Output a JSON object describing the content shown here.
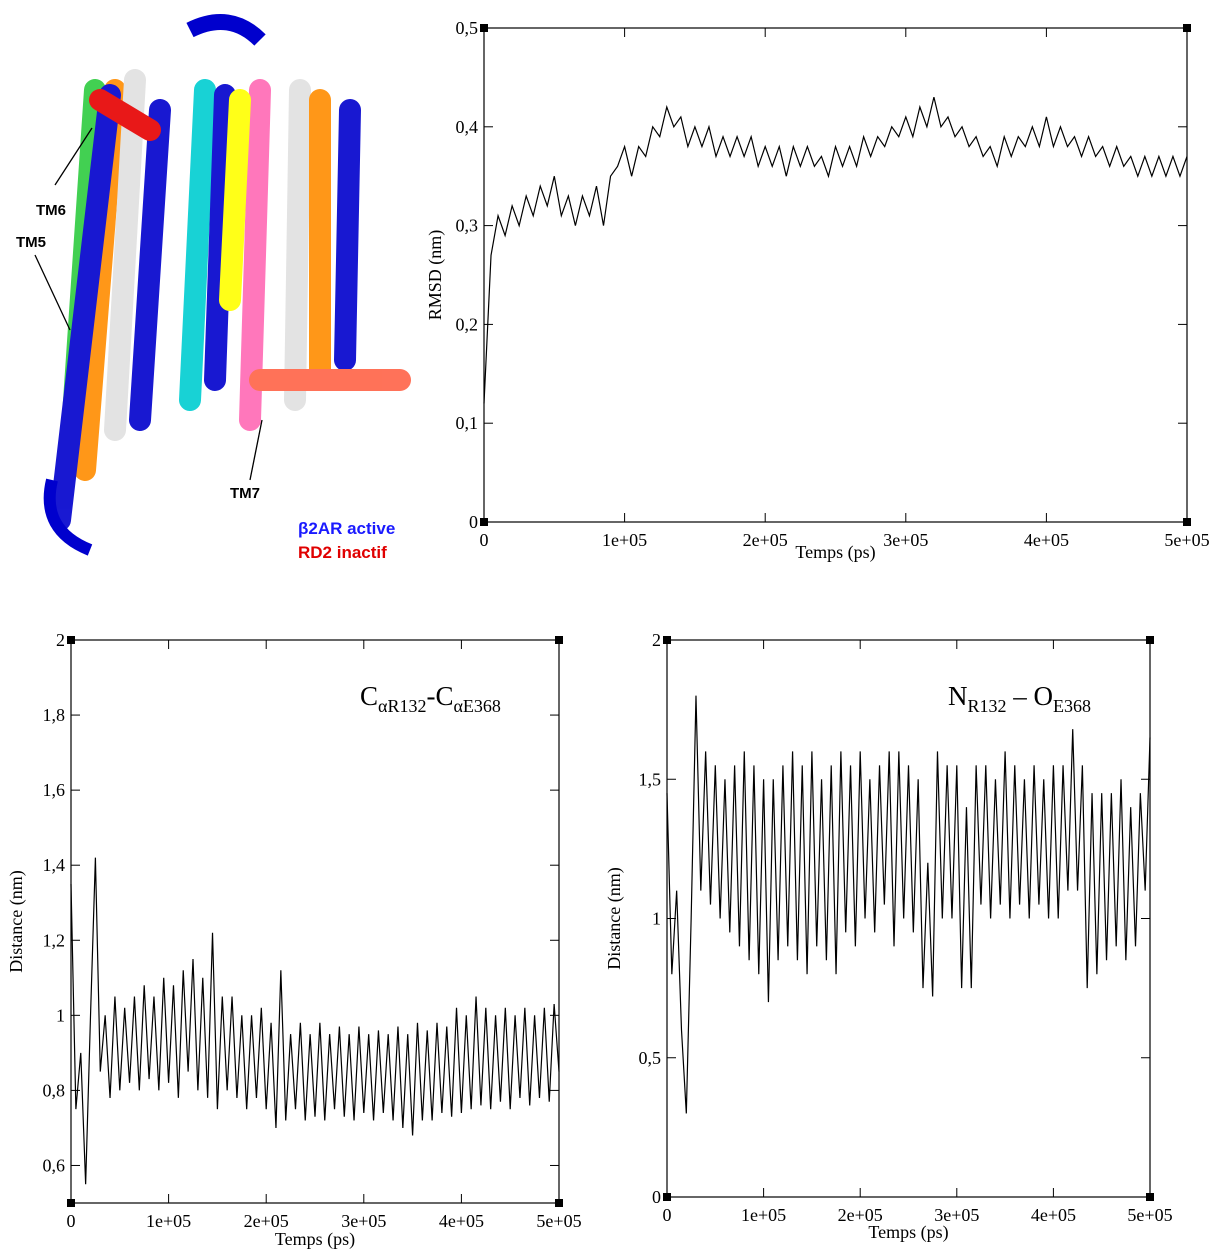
{
  "figure_image": {
    "labels": [
      "TM6",
      "TM5",
      "TM7"
    ],
    "legend": [
      "β2AR active",
      "RD2 inactif"
    ]
  },
  "chart_data": [
    {
      "type": "line",
      "ylabel": "RMSD (nm)",
      "xlabel": "Temps (ps)",
      "xlim": [
        0,
        500000
      ],
      "ylim": [
        0,
        0.5
      ],
      "xticks": [
        0,
        {
          "value": 100000,
          "label": "1e+05"
        },
        {
          "value": 200000,
          "label": "2e+05"
        },
        {
          "value": 300000,
          "label": "3e+05"
        },
        {
          "value": 400000,
          "label": "4e+05"
        },
        {
          "value": 500000,
          "label": "5e+05"
        }
      ],
      "yticks": [
        0,
        {
          "value": 0.1,
          "label": "0,1"
        },
        {
          "value": 0.2,
          "label": "0,2"
        },
        {
          "value": 0.3,
          "label": "0,3"
        },
        {
          "value": 0.4,
          "label": "0,4"
        },
        {
          "value": 0.5,
          "label": "0,5"
        }
      ],
      "x": [
        0,
        5000,
        10000,
        15000,
        20000,
        25000,
        30000,
        35000,
        40000,
        45000,
        50000,
        55000,
        60000,
        65000,
        70000,
        75000,
        80000,
        85000,
        90000,
        95000,
        100000,
        105000,
        110000,
        115000,
        120000,
        125000,
        130000,
        135000,
        140000,
        145000,
        150000,
        155000,
        160000,
        165000,
        170000,
        175000,
        180000,
        185000,
        190000,
        195000,
        200000,
        205000,
        210000,
        215000,
        220000,
        225000,
        230000,
        235000,
        240000,
        245000,
        250000,
        255000,
        260000,
        265000,
        270000,
        275000,
        280000,
        285000,
        290000,
        295000,
        300000,
        305000,
        310000,
        315000,
        320000,
        325000,
        330000,
        335000,
        340000,
        345000,
        350000,
        355000,
        360000,
        365000,
        370000,
        375000,
        380000,
        385000,
        390000,
        395000,
        400000,
        405000,
        410000,
        415000,
        420000,
        425000,
        430000,
        435000,
        440000,
        445000,
        450000,
        455000,
        460000,
        465000,
        470000,
        475000,
        480000,
        485000,
        490000,
        495000,
        500000
      ],
      "series": [
        {
          "color": "#000000",
          "values": [
            0.12,
            0.27,
            0.31,
            0.29,
            0.32,
            0.3,
            0.33,
            0.31,
            0.34,
            0.32,
            0.35,
            0.31,
            0.33,
            0.3,
            0.33,
            0.31,
            0.34,
            0.3,
            0.35,
            0.36,
            0.38,
            0.35,
            0.38,
            0.37,
            0.4,
            0.39,
            0.42,
            0.4,
            0.41,
            0.38,
            0.4,
            0.38,
            0.4,
            0.37,
            0.39,
            0.37,
            0.39,
            0.37,
            0.39,
            0.36,
            0.38,
            0.36,
            0.38,
            0.35,
            0.38,
            0.36,
            0.38,
            0.36,
            0.37,
            0.35,
            0.38,
            0.36,
            0.38,
            0.36,
            0.39,
            0.37,
            0.39,
            0.38,
            0.4,
            0.39,
            0.41,
            0.39,
            0.42,
            0.4,
            0.43,
            0.4,
            0.41,
            0.39,
            0.4,
            0.38,
            0.39,
            0.37,
            0.38,
            0.36,
            0.39,
            0.37,
            0.39,
            0.38,
            0.4,
            0.38,
            0.41,
            0.38,
            0.4,
            0.38,
            0.39,
            0.37,
            0.39,
            0.37,
            0.38,
            0.36,
            0.38,
            0.36,
            0.37,
            0.35,
            0.37,
            0.35,
            0.37,
            0.35,
            0.37,
            0.35,
            0.37
          ]
        }
      ]
    },
    {
      "type": "line",
      "ylabel": "Distance (nm)",
      "xlabel": "Temps (ps)",
      "annotation": [
        "C",
        "αR132",
        "-C",
        "αE368"
      ],
      "xlim": [
        0,
        500000
      ],
      "ylim": [
        0.5,
        2
      ],
      "xticks": [
        0,
        {
          "value": 100000,
          "label": "1e+05"
        },
        {
          "value": 200000,
          "label": "2e+05"
        },
        {
          "value": 300000,
          "label": "3e+05"
        },
        {
          "value": 400000,
          "label": "4e+05"
        },
        {
          "value": 500000,
          "label": "5e+05"
        }
      ],
      "yticks": [
        {
          "value": 0.6,
          "label": "0,6"
        },
        {
          "value": 0.8,
          "label": "0,8"
        },
        1,
        {
          "value": 1.2,
          "label": "1,2"
        },
        {
          "value": 1.4,
          "label": "1,4"
        },
        {
          "value": 1.6,
          "label": "1,6"
        },
        {
          "value": 1.8,
          "label": "1,8"
        },
        2
      ],
      "x": [
        0,
        5000,
        10000,
        15000,
        20000,
        25000,
        30000,
        35000,
        40000,
        45000,
        50000,
        55000,
        60000,
        65000,
        70000,
        75000,
        80000,
        85000,
        90000,
        95000,
        100000,
        105000,
        110000,
        115000,
        120000,
        125000,
        130000,
        135000,
        140000,
        145000,
        150000,
        155000,
        160000,
        165000,
        170000,
        175000,
        180000,
        185000,
        190000,
        195000,
        200000,
        205000,
        210000,
        215000,
        220000,
        225000,
        230000,
        235000,
        240000,
        245000,
        250000,
        255000,
        260000,
        265000,
        270000,
        275000,
        280000,
        285000,
        290000,
        295000,
        300000,
        305000,
        310000,
        315000,
        320000,
        325000,
        330000,
        335000,
        340000,
        345000,
        350000,
        355000,
        360000,
        365000,
        370000,
        375000,
        380000,
        385000,
        390000,
        395000,
        400000,
        405000,
        410000,
        415000,
        420000,
        425000,
        430000,
        435000,
        440000,
        445000,
        450000,
        455000,
        460000,
        465000,
        470000,
        475000,
        480000,
        485000,
        490000,
        495000,
        500000
      ],
      "series": [
        {
          "color": "#000000",
          "values": [
            1.35,
            0.75,
            0.9,
            0.55,
            1.0,
            1.42,
            0.85,
            1.0,
            0.78,
            1.05,
            0.8,
            1.02,
            0.82,
            1.05,
            0.8,
            1.08,
            0.83,
            1.05,
            0.8,
            1.1,
            0.82,
            1.08,
            0.78,
            1.12,
            0.85,
            1.15,
            0.8,
            1.1,
            0.78,
            1.22,
            0.75,
            1.05,
            0.8,
            1.05,
            0.78,
            1.0,
            0.75,
            1.0,
            0.78,
            1.02,
            0.75,
            0.98,
            0.7,
            1.12,
            0.72,
            0.95,
            0.75,
            0.98,
            0.72,
            0.95,
            0.73,
            0.98,
            0.72,
            0.95,
            0.75,
            0.97,
            0.73,
            0.95,
            0.72,
            0.97,
            0.74,
            0.95,
            0.72,
            0.96,
            0.74,
            0.95,
            0.72,
            0.97,
            0.7,
            0.95,
            0.68,
            0.98,
            0.72,
            0.96,
            0.72,
            0.98,
            0.74,
            0.97,
            0.73,
            1.02,
            0.74,
            1.0,
            0.75,
            1.05,
            0.76,
            1.02,
            0.75,
            1.0,
            0.77,
            1.02,
            0.75,
            1.0,
            0.78,
            1.02,
            0.76,
            1.0,
            0.78,
            1.02,
            0.77,
            1.03,
            0.85
          ]
        }
      ]
    },
    {
      "type": "line",
      "ylabel": "Distance (nm)",
      "xlabel": "Temps (ps)",
      "annotation": [
        "N",
        "R132",
        " – O",
        "E368"
      ],
      "xlim": [
        0,
        500000
      ],
      "ylim": [
        0,
        2
      ],
      "xticks": [
        0,
        {
          "value": 100000,
          "label": "1e+05"
        },
        {
          "value": 200000,
          "label": "2e+05"
        },
        {
          "value": 300000,
          "label": "3e+05"
        },
        {
          "value": 400000,
          "label": "4e+05"
        },
        {
          "value": 500000,
          "label": "5e+05"
        }
      ],
      "yticks": [
        0,
        {
          "value": 0.5,
          "label": "0,5"
        },
        1,
        {
          "value": 1.5,
          "label": "1,5"
        },
        2
      ],
      "x": [
        0,
        5000,
        10000,
        15000,
        20000,
        25000,
        30000,
        35000,
        40000,
        45000,
        50000,
        55000,
        60000,
        65000,
        70000,
        75000,
        80000,
        85000,
        90000,
        95000,
        100000,
        105000,
        110000,
        115000,
        120000,
        125000,
        130000,
        135000,
        140000,
        145000,
        150000,
        155000,
        160000,
        165000,
        170000,
        175000,
        180000,
        185000,
        190000,
        195000,
        200000,
        205000,
        210000,
        215000,
        220000,
        225000,
        230000,
        235000,
        240000,
        245000,
        250000,
        255000,
        260000,
        265000,
        270000,
        275000,
        280000,
        285000,
        290000,
        295000,
        300000,
        305000,
        310000,
        315000,
        320000,
        325000,
        330000,
        335000,
        340000,
        345000,
        350000,
        355000,
        360000,
        365000,
        370000,
        375000,
        380000,
        385000,
        390000,
        395000,
        400000,
        405000,
        410000,
        415000,
        420000,
        425000,
        430000,
        435000,
        440000,
        445000,
        450000,
        455000,
        460000,
        465000,
        470000,
        475000,
        480000,
        485000,
        490000,
        495000,
        500000
      ],
      "series": [
        {
          "color": "#000000",
          "values": [
            1.45,
            0.8,
            1.1,
            0.6,
            0.3,
            1.0,
            1.8,
            1.1,
            1.6,
            1.05,
            1.55,
            1.0,
            1.5,
            0.95,
            1.55,
            0.9,
            1.6,
            0.85,
            1.55,
            0.8,
            1.5,
            0.7,
            1.5,
            0.85,
            1.55,
            0.9,
            1.6,
            0.85,
            1.55,
            0.8,
            1.6,
            0.9,
            1.5,
            0.85,
            1.55,
            0.8,
            1.6,
            0.95,
            1.55,
            0.9,
            1.6,
            1.0,
            1.5,
            0.95,
            1.55,
            1.05,
            1.6,
            0.9,
            1.6,
            1.0,
            1.55,
            0.95,
            1.5,
            0.75,
            1.2,
            0.72,
            1.6,
            1.0,
            1.55,
            1.0,
            1.55,
            0.75,
            1.4,
            0.75,
            1.55,
            1.05,
            1.55,
            1.0,
            1.5,
            1.05,
            1.6,
            1.0,
            1.55,
            1.05,
            1.5,
            1.0,
            1.55,
            1.05,
            1.5,
            1.0,
            1.55,
            1.0,
            1.55,
            1.1,
            1.68,
            1.1,
            1.55,
            0.75,
            1.45,
            0.8,
            1.45,
            0.85,
            1.45,
            0.9,
            1.5,
            0.85,
            1.4,
            0.9,
            1.45,
            1.1,
            1.65
          ]
        }
      ]
    }
  ]
}
